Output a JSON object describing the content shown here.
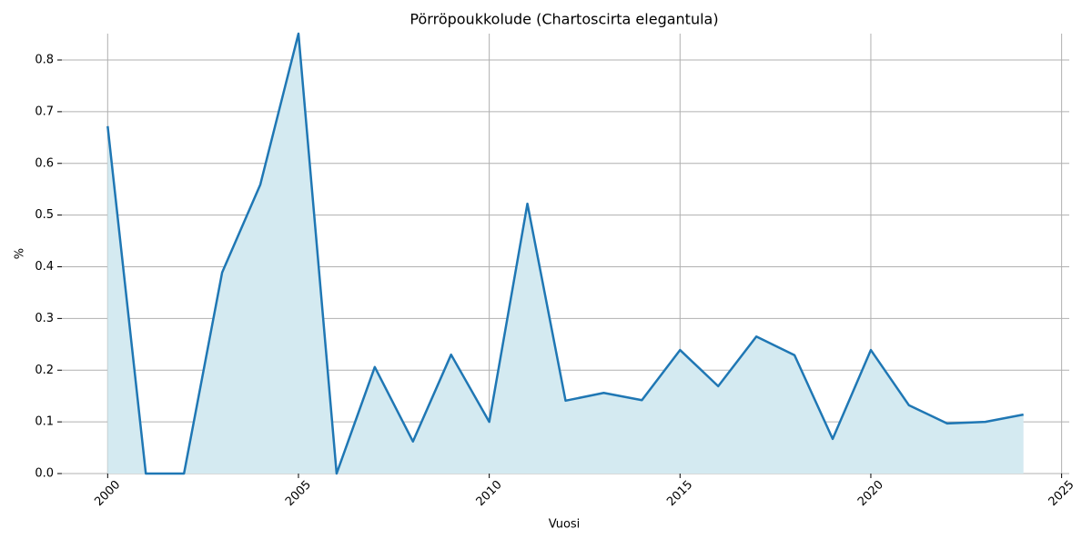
{
  "chart_data": {
    "type": "area",
    "title": "Pörröpoukkolude (Chartoscirta elegantula)",
    "xlabel": "Vuosi",
    "ylabel": "%",
    "x": [
      2000,
      2001,
      2002,
      2003,
      2004,
      2005,
      2006,
      2007,
      2008,
      2009,
      2010,
      2011,
      2012,
      2013,
      2014,
      2015,
      2016,
      2017,
      2018,
      2019,
      2020,
      2021,
      2022,
      2023,
      2024
    ],
    "values": [
      0.672,
      0,
      0,
      0.389,
      0.559,
      0.851,
      0,
      0.206,
      0.062,
      0.23,
      0.1,
      0.522,
      0.141,
      0.156,
      0.142,
      0.239,
      0.169,
      0.265,
      0.229,
      0.067,
      0.239,
      0.132,
      0.097,
      0.1,
      0.114
    ],
    "color": "#1f77b4",
    "fill_color": "#d4eaf1",
    "xlim": [
      1998.8,
      2025.2
    ],
    "ylim": [
      0,
      0.851
    ],
    "xticks": [
      2000,
      2005,
      2010,
      2015,
      2020,
      2025
    ],
    "yticks": [
      {
        "value": 0,
        "label": "0.0"
      },
      0.1,
      0.2,
      0.3,
      0.4,
      0.5,
      0.6,
      0.7,
      0.8
    ],
    "grid": true
  }
}
